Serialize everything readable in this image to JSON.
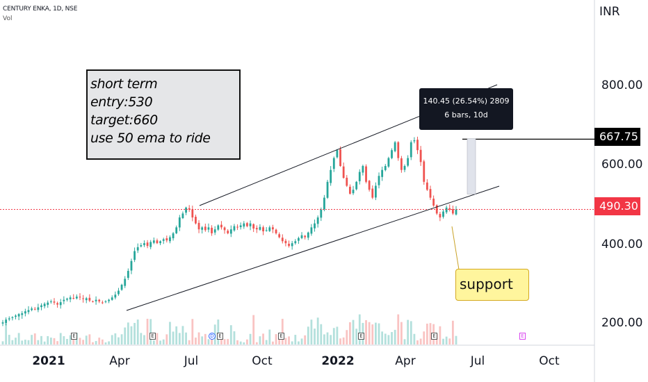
{
  "header": {
    "symbol_line": "CENTURY ENKA, 1D, NSE",
    "volume_label": "Vol"
  },
  "price_axis": {
    "currency": "INR",
    "ticks": [
      "800.00",
      "600.00",
      "400.00",
      "200.00"
    ],
    "target_price": "667.75",
    "last_price": "490.30"
  },
  "time_axis": {
    "labels": [
      "2021",
      "Apr",
      "Jul",
      "Oct",
      "2022",
      "Apr",
      "Jul",
      "Oct"
    ]
  },
  "annotations": {
    "note_lines": [
      "short term",
      "entry:530",
      "target:660",
      "use 50 ema to ride"
    ],
    "measure_line1": "140.45 (26.54%) 2809",
    "measure_line2": "6 bars, 10d",
    "callout": "support"
  },
  "events": {
    "earnings_marker": "E",
    "dividend_marker": "D"
  },
  "colors": {
    "up": "#26a69a",
    "down": "#ef5350",
    "last_price": "#f23645",
    "note_bg": "#e5e6e8",
    "callout_bg": "#fff59d",
    "measure_fill": "#e0e3eb"
  },
  "chart_data": {
    "type": "candlestick",
    "x_range": [
      "2020-12-01",
      "2022-10-31"
    ],
    "ylim": [
      150,
      900
    ],
    "channel": {
      "upper": [
        {
          "date": "2021-07-01",
          "value": 505
        },
        {
          "date": "2022-06-28",
          "value": 520
        }
      ],
      "lower": [
        {
          "date": "2021-03-15",
          "value": 238
        },
        {
          "date": "2022-06-25",
          "value": 523
        }
      ]
    },
    "target_level": 667.75,
    "last_price_level": 490.3,
    "measure": {
      "from_date": "2022-06-16",
      "to_date": "2022-06-16",
      "from_value": 529,
      "to_value": 669
    },
    "support_point": {
      "date": "2022-06-01",
      "value": 462
    },
    "earnings_dates": [
      "2021-02-10",
      "2021-05-25",
      "2021-08-10",
      "2021-11-10",
      "2022-02-10",
      "2022-05-20",
      "2022-08-15"
    ],
    "dividend_date": "2021-07-28",
    "series": [
      {
        "closes": [
          205,
          212,
          215,
          218,
          222,
          226,
          228,
          233,
          236,
          240,
          238,
          243,
          248,
          252,
          255,
          258,
          255,
          250,
          256,
          262,
          265,
          268,
          265,
          270,
          268,
          264,
          266,
          260,
          258,
          262,
          258,
          255,
          258,
          262,
          268,
          275,
          285,
          300,
          315,
          335,
          360,
          385,
          395,
          400,
          405,
          398,
          408,
          412,
          405,
          410,
          415,
          412,
          420,
          430,
          445,
          470,
          480,
          495,
          490,
          470,
          455,
          440,
          445,
          438,
          445,
          430,
          440,
          450,
          445,
          438,
          430,
          440,
          448,
          445,
          450,
          455,
          448,
          455,
          442,
          440,
          446,
          435,
          438,
          445,
          440,
          430,
          420,
          410,
          405,
          398,
          405,
          410,
          418,
          425,
          420,
          432,
          445,
          455,
          470,
          490,
          520,
          560,
          590,
          620,
          640,
          600,
          570,
          550,
          530,
          540,
          560,
          585,
          600,
          560,
          540,
          520,
          550,
          575,
          590,
          600,
          620,
          640,
          660,
          620,
          590,
          600,
          620,
          660,
          665,
          640,
          610,
          560,
          540,
          520,
          500,
          480,
          470,
          485,
          495,
          490,
          480,
          490
        ]
      }
    ],
    "volume_scale": "relative"
  }
}
